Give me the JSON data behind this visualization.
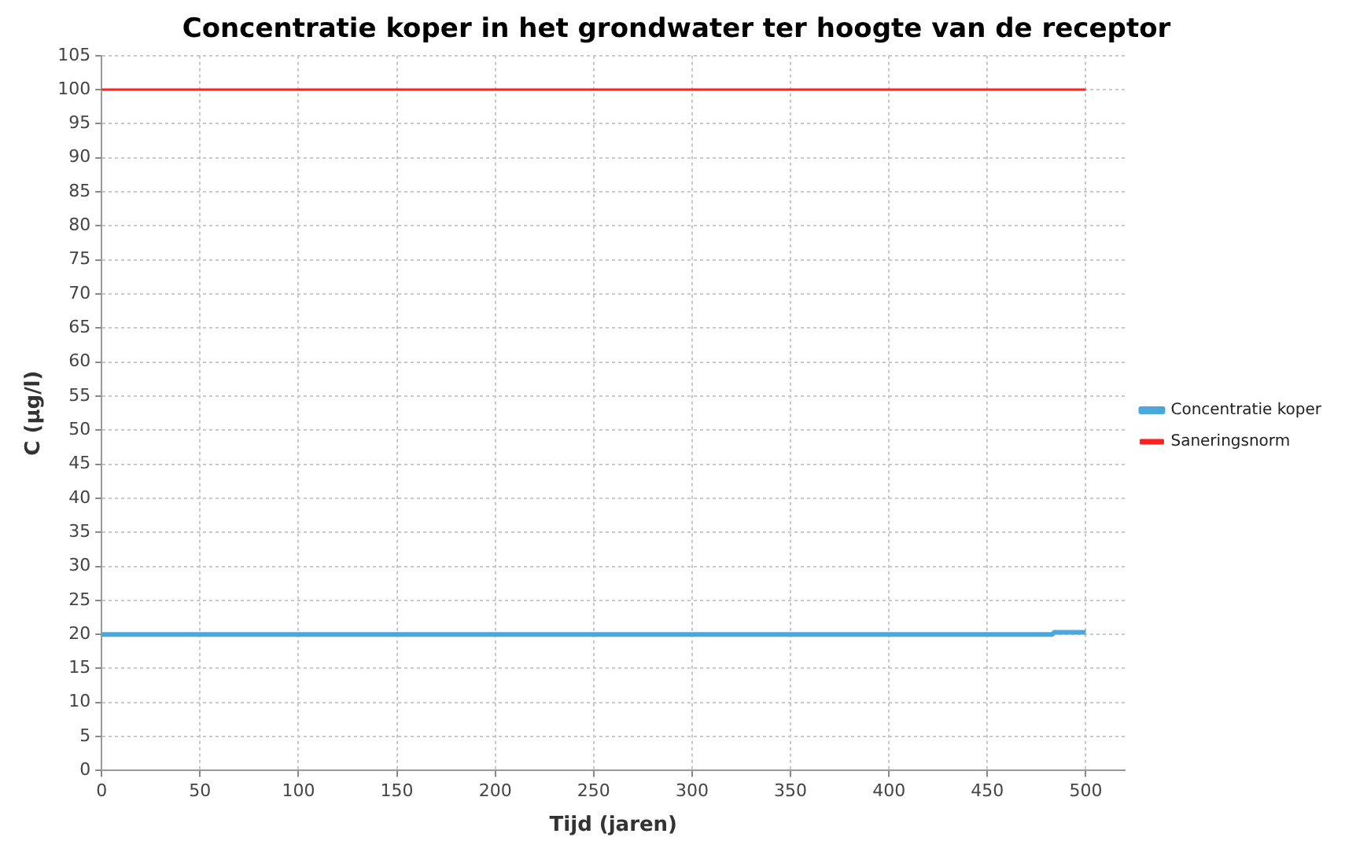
{
  "chart_data": {
    "type": "line",
    "title": "Concentratie koper in het grondwater ter hoogte van de receptor",
    "xlabel": "Tijd (jaren)",
    "ylabel": "C (µg/l)",
    "xlim": [
      0,
      520
    ],
    "xticks": [
      0,
      50,
      100,
      150,
      200,
      250,
      300,
      350,
      400,
      450,
      500
    ],
    "ylim": [
      0,
      105
    ],
    "yticks": [
      0,
      5,
      10,
      15,
      20,
      25,
      30,
      35,
      40,
      45,
      50,
      55,
      60,
      65,
      70,
      75,
      80,
      85,
      90,
      95,
      100,
      105
    ],
    "grid": true,
    "legend": "right",
    "marker": "none",
    "line_style": "solid",
    "series": [
      {
        "name": "Concentratie koper",
        "color": "#4aa8dc",
        "x": [
          0,
          483,
          484,
          500
        ],
        "values": [
          20,
          20,
          20.3,
          20.3
        ]
      },
      {
        "name": "Saneringsnorm",
        "color": "#ff2020",
        "x": [
          0,
          500
        ],
        "values": [
          100,
          100
        ]
      }
    ]
  }
}
